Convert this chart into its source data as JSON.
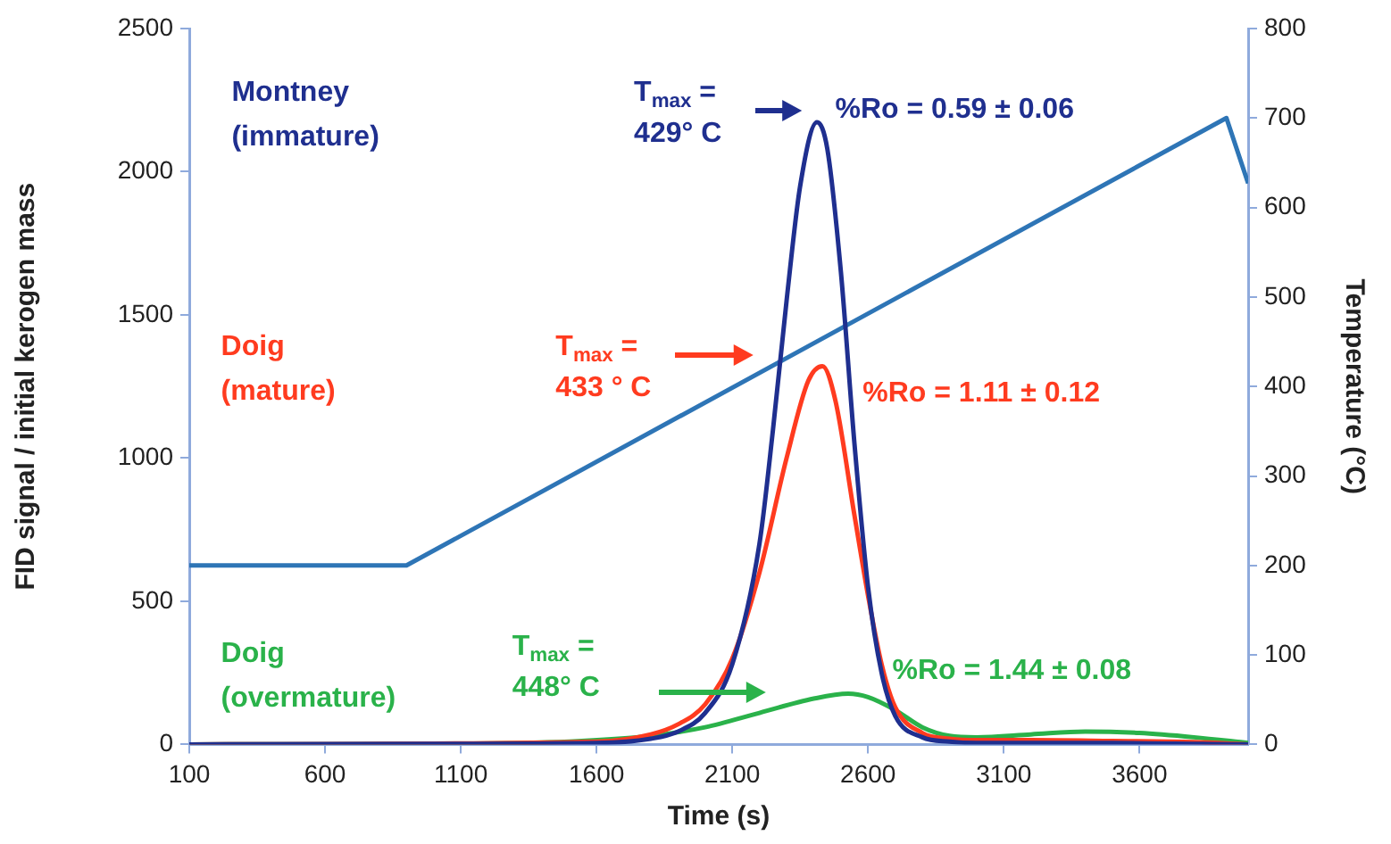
{
  "chart_data": {
    "type": "line",
    "xlabel": "Time (s)",
    "ylabel": "FID signal / initial kerogen mass",
    "y2label": "Temperature (°C)",
    "xlim": [
      100,
      4000
    ],
    "xticks": [
      100,
      600,
      1100,
      1600,
      2100,
      2600,
      3100,
      3600
    ],
    "ylim": [
      0,
      2500
    ],
    "yticks": [
      0,
      500,
      1000,
      1500,
      2000,
      2500
    ],
    "y2lim": [
      0,
      800
    ],
    "y2ticks": [
      0,
      100,
      200,
      300,
      400,
      500,
      600,
      700,
      800
    ],
    "series": [
      {
        "name": "Montney (immature)",
        "color": "#1f2f8f",
        "x": [
          100,
          1000,
          1600,
          1800,
          1900,
          2000,
          2100,
          2200,
          2250,
          2300,
          2350,
          2412,
          2450,
          2500,
          2550,
          2600,
          2650,
          2700,
          2800,
          2900,
          3000,
          3500,
          4000
        ],
        "values": [
          0,
          2,
          5,
          20,
          45,
          110,
          280,
          700,
          1100,
          1550,
          1950,
          2173,
          2080,
          1650,
          1050,
          550,
          250,
          100,
          25,
          10,
          5,
          5,
          0
        ]
      },
      {
        "name": "Doig (mature)",
        "color": "#ff3b1f",
        "x": [
          100,
          1600,
          1800,
          1900,
          2000,
          2100,
          2200,
          2300,
          2380,
          2432,
          2480,
          2550,
          2600,
          2650,
          2700,
          2800,
          2900,
          3000,
          3200,
          3500,
          3800,
          4000
        ],
        "values": [
          0,
          10,
          35,
          70,
          140,
          300,
          600,
          1000,
          1270,
          1321,
          1200,
          800,
          520,
          280,
          130,
          40,
          20,
          15,
          15,
          12,
          8,
          0
        ]
      },
      {
        "name": "Doig (overmature)",
        "color": "#2ab24a",
        "x": [
          100,
          1000,
          1500,
          1800,
          2000,
          2200,
          2400,
          2527,
          2600,
          2700,
          2800,
          2900,
          3000,
          3200,
          3400,
          3600,
          3800,
          4000
        ],
        "values": [
          0,
          2,
          10,
          30,
          60,
          110,
          160,
          177,
          165,
          120,
          60,
          30,
          25,
          35,
          45,
          40,
          25,
          5
        ]
      },
      {
        "color": "#2e75b6",
        "axis": "y2",
        "x": [
          100,
          900,
          3920,
          4000
        ],
        "values": [
          200,
          200,
          700,
          627
        ]
      }
    ],
    "annotations": [
      "T$_{max}$ = 429° C",
      "%Ro = 0.59 ± 0.06",
      "T$_{max}$ = 433 ° C",
      "%Ro = 1.11 ± 0.12",
      "T$_{max}$ = 448° C",
      "%Ro = 1.44 ± 0.08"
    ]
  }
}
